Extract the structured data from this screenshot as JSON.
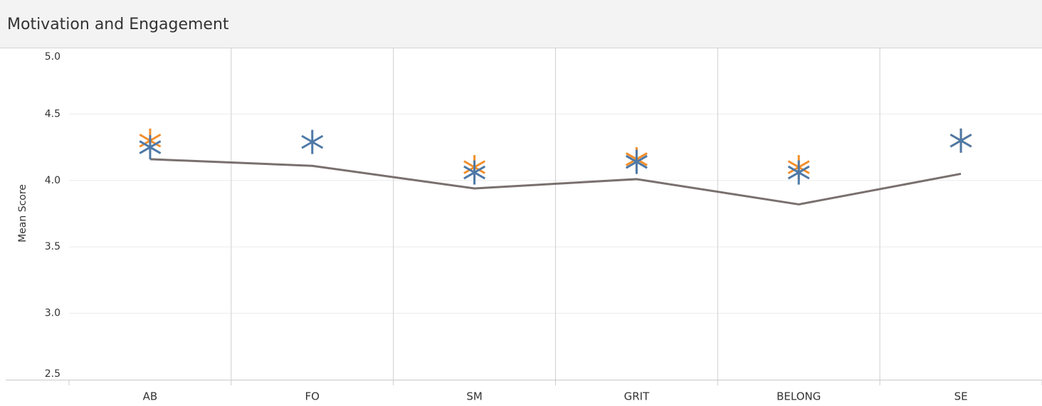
{
  "chart_data": {
    "type": "line",
    "title": "Motivation and Engagement",
    "y_label": "Mean Score",
    "categories": [
      "AB",
      "FO",
      "SM",
      "GRIT",
      "BELONG",
      "SE"
    ],
    "series": [
      {
        "color": "#79706e",
        "marker": "line",
        "values": [
          4.16,
          4.11,
          3.94,
          4.01,
          3.82,
          4.05
        ]
      },
      {
        "color": "#f28e2b",
        "marker": "asterisk",
        "values": [
          4.3,
          null,
          4.1,
          4.16,
          4.1,
          4.3
        ]
      },
      {
        "color": "#4e79a7",
        "marker": "asterisk",
        "values": [
          4.25,
          4.29,
          4.06,
          4.14,
          4.06,
          4.3
        ]
      }
    ],
    "ylim": [
      2.5,
      5.0
    ],
    "yticks": [
      {
        "value": 2.5,
        "label": "2.5"
      },
      {
        "value": 3,
        "label": "3.0"
      },
      {
        "value": 3.5,
        "label": "3.5"
      },
      {
        "value": 4,
        "label": "4.0"
      },
      {
        "value": 4.5,
        "label": "4.5"
      },
      {
        "value": 5,
        "label": "5.0"
      }
    ],
    "grid": true
  }
}
